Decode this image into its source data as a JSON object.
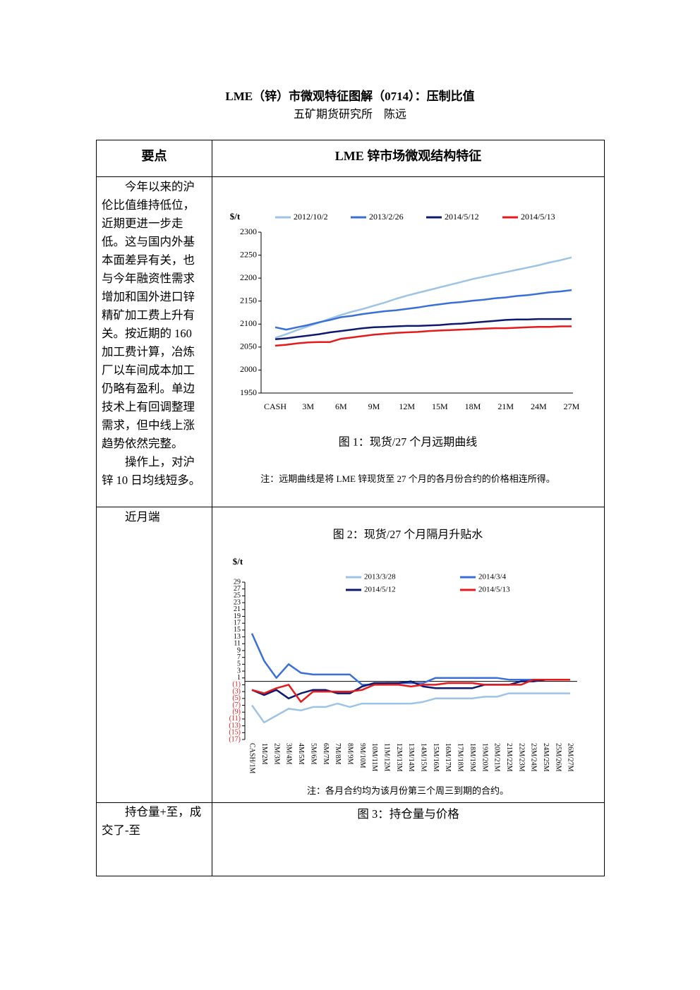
{
  "header": {
    "title": "LME（锌）市微观特征图解（0714）：压制比值",
    "author": "五矿期货研究所　陈远"
  },
  "table": {
    "headers": [
      "要点",
      "LME 锌市场微观结构特征"
    ],
    "rows": [
      {
        "left": [
          "今年以来的沪伦比值维持低位，近期更进一步走低。这与国内外基本面差异有关，也与今年融资性需求增加和国外进口锌精矿加工费上升有关。按近期的 160 加工费计算，冶炼厂以车间成本加工仍略有盈利。单边技术上有回调整理需求，但中线上涨趋势依然完整。",
          "操作上，对沪锌 10 日均线短多。"
        ]
      },
      {
        "left": [
          "近月端"
        ]
      },
      {
        "left": [
          "持仓量+至，成交了-至"
        ],
        "right": "图 3：持仓量与价格"
      }
    ]
  },
  "chart_data": [
    {
      "type": "line",
      "title": "图 1：现货/27 个月远期曲线",
      "note": "注：远期曲线是将 LME 锌现货至 27 个月的各月份合约的价格相连所得。",
      "y_label": "$/t",
      "categories": [
        "CASH",
        null,
        null,
        "3M",
        null,
        null,
        "6M",
        null,
        null,
        "9M",
        null,
        null,
        "12M",
        null,
        null,
        "15M",
        null,
        null,
        "18M",
        null,
        null,
        "21M",
        null,
        null,
        "24M",
        null,
        null,
        "27M"
      ],
      "series": [
        {
          "name": "2012/10/2",
          "color": "#9dc3e6",
          "values": [
            2070,
            2078,
            2087,
            2095,
            2103,
            2112,
            2120,
            2127,
            2133,
            2140,
            2147,
            2155,
            2162,
            2168,
            2174,
            2180,
            2186,
            2192,
            2198,
            2203,
            2208,
            2213,
            2218,
            2223,
            2228,
            2234,
            2239,
            2245
          ]
        },
        {
          "name": "2013/2/26",
          "color": "#3a6fd8",
          "values": [
            2093,
            2088,
            2093,
            2098,
            2104,
            2109,
            2115,
            2118,
            2122,
            2125,
            2128,
            2130,
            2133,
            2136,
            2140,
            2143,
            2146,
            2148,
            2151,
            2153,
            2156,
            2158,
            2161,
            2163,
            2166,
            2169,
            2171,
            2174
          ]
        },
        {
          "name": "2014/5/12",
          "color": "#0d1a6e",
          "values": [
            2067,
            2069,
            2072,
            2075,
            2078,
            2082,
            2085,
            2088,
            2091,
            2093,
            2094,
            2095,
            2096,
            2096,
            2097,
            2098,
            2100,
            2101,
            2103,
            2105,
            2107,
            2109,
            2110,
            2110,
            2111,
            2111,
            2111,
            2111
          ]
        },
        {
          "name": "2014/5/13",
          "color": "#e41a1c",
          "values": [
            2053,
            2055,
            2058,
            2060,
            2061,
            2061,
            2068,
            2071,
            2074,
            2077,
            2079,
            2081,
            2082,
            2083,
            2085,
            2086,
            2087,
            2088,
            2089,
            2090,
            2091,
            2091,
            2092,
            2093,
            2094,
            2094,
            2095,
            2095
          ]
        }
      ],
      "ylim": [
        1950,
        2300
      ],
      "yticks": [
        1950,
        2000,
        2050,
        2100,
        2150,
        2200,
        2250,
        2300
      ],
      "grid": false
    },
    {
      "type": "line",
      "title": "图 2：现货/27 个月隔月升贴水",
      "note": "注：各月合约均为该月份第三个周三到期的合约。",
      "y_label": "$/t",
      "categories": [
        "CASH/1M",
        "1M/2M",
        "2M/3M",
        "3M/4M",
        "4M/5M",
        "5M/6M",
        "6M/7M",
        "7M/8M",
        "8M/9M",
        "9M/10M",
        "10M/11M",
        "11M/12M",
        "12M/13M",
        "13M/14M",
        "14M/15M",
        "15M/16M",
        "16M/17M",
        "17M/18M",
        "18M/19M",
        "19M/20M",
        "20M/21M",
        "21M/22M",
        "22M/23M",
        "23M/24M",
        "24M/25M",
        "25M/26M",
        "26M/27M"
      ],
      "series": [
        {
          "name": "2013/3/28",
          "color": "#9dc3e6",
          "values": [
            -7,
            -12,
            -10,
            -8,
            -8.5,
            -7.5,
            -7.5,
            -6.5,
            -7.5,
            -6.5,
            -6.5,
            -6.5,
            -6.5,
            -6.5,
            -6,
            -5,
            -5,
            -5,
            -5,
            -4.5,
            -4.5,
            -3.5,
            -3.5,
            -3.5,
            -3.5,
            -3.5,
            -3.5
          ]
        },
        {
          "name": "2014/3/4",
          "color": "#3a6fd8",
          "values": [
            14,
            6,
            1,
            5,
            2.5,
            2,
            2,
            2,
            2,
            -1,
            -1,
            -0.5,
            -0.5,
            -0.5,
            -0.5,
            1,
            1,
            1,
            1,
            1,
            1,
            0.5,
            0.5,
            0.5,
            0.5,
            0.5,
            0.5
          ]
        },
        {
          "name": "2014/5/12",
          "color": "#0d1a6e",
          "values": [
            -2.5,
            -4,
            -2.5,
            -5,
            -3.5,
            -2.5,
            -2.5,
            -3.5,
            -3.5,
            -1.5,
            -0.5,
            -0.5,
            -0.5,
            0,
            -1.5,
            -2,
            -2,
            -2,
            -2,
            -1,
            -1,
            -1,
            0,
            0,
            0.5,
            0.5,
            0.5
          ]
        },
        {
          "name": "2014/5/13",
          "color": "#e41a1c",
          "values": [
            -2.5,
            -3.5,
            -2,
            -1,
            -6,
            -3,
            -3,
            -3,
            -3,
            -2.5,
            -1,
            -1,
            -1,
            -1.5,
            -1,
            -1,
            -0.5,
            -0.5,
            -0.5,
            -1,
            -1,
            -1,
            -1,
            0.5,
            0.5,
            0.5,
            0.5
          ]
        }
      ],
      "ylim": [
        -17,
        29
      ],
      "yticks": [
        29,
        27,
        25,
        23,
        21,
        19,
        17,
        15,
        13,
        11,
        9,
        7,
        5,
        3,
        1,
        {
          "value": -1,
          "label": "(1)"
        },
        {
          "value": -3,
          "label": "(3)"
        },
        {
          "value": -5,
          "label": "(5)"
        },
        {
          "value": -7,
          "label": "(7)"
        },
        {
          "value": -9,
          "label": "(9)"
        },
        {
          "value": -11,
          "label": "(11)"
        },
        {
          "value": -13,
          "label": "(13)"
        },
        {
          "value": -15,
          "label": "(15)"
        },
        {
          "value": -17,
          "label": "(17)"
        }
      ],
      "negative_tick_color": "#e41a1c",
      "grid": false
    }
  ]
}
